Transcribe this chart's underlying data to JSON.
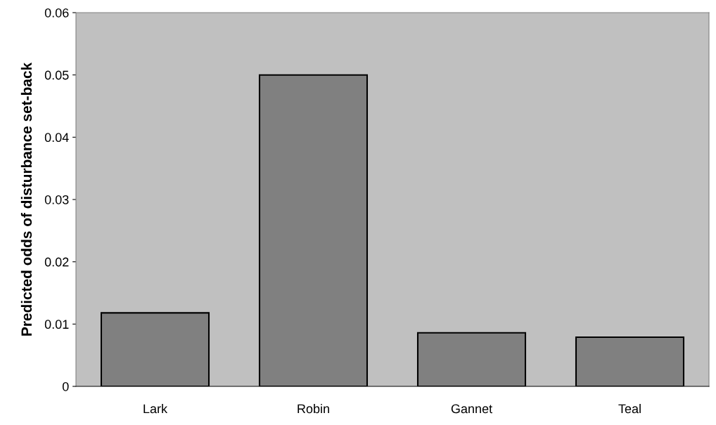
{
  "chart_data": {
    "type": "bar",
    "ylabel": "Predicted odds of disturbance set-back",
    "categories": [
      "Lark",
      "Robin",
      "Gannet",
      "Teal"
    ],
    "values": [
      0.0118,
      0.05,
      0.0086,
      0.0079
    ],
    "color": "#808080",
    "ylim": [
      0,
      0.06
    ],
    "yticks": [
      0,
      0.01,
      0.02,
      0.03,
      0.04,
      0.05,
      0.06
    ],
    "grid": false,
    "legend": false
  }
}
